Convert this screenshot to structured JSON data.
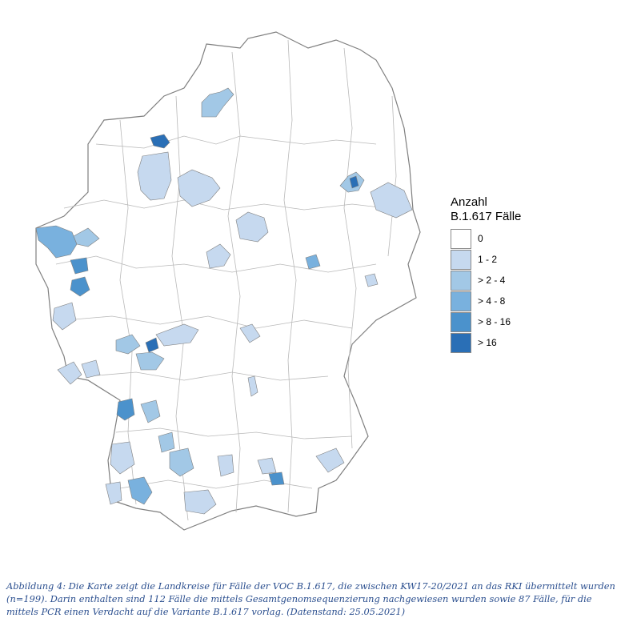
{
  "colors": {
    "classes": [
      "#ffffff",
      "#c6d9ef",
      "#a2c8e6",
      "#79b1de",
      "#4b92cc",
      "#2a6fb6"
    ],
    "border": "#8c8c8c",
    "caption": "#2b4f8f"
  },
  "legend": {
    "title_line1": "Anzahl",
    "title_line2": "B.1.617 Fälle",
    "items": [
      {
        "label": "0",
        "class": 0
      },
      {
        "label": "1 - 2",
        "class": 1
      },
      {
        "label": "> 2 - 4",
        "class": 2
      },
      {
        "label": "> 4 - 8",
        "class": 3
      },
      {
        "label": "> 8 - 16",
        "class": 4
      },
      {
        "label": "> 16",
        "class": 5
      }
    ]
  },
  "caption": "Abbildung 4: Die Karte zeigt die Landkreise für Fälle der VOC B.1.617, die zwischen KW17-20/2021 an das RKI übermittelt wurden (n=199). Darin enthalten sind 112 Fälle die mittels Gesamtgenomsequenzierung nachgewiesen wurden sowie 87 Fälle, für die mittels PCR einen Verdacht auf die Variante B.1.617 vorlag. (Datenstand: 25.05.2021)"
}
